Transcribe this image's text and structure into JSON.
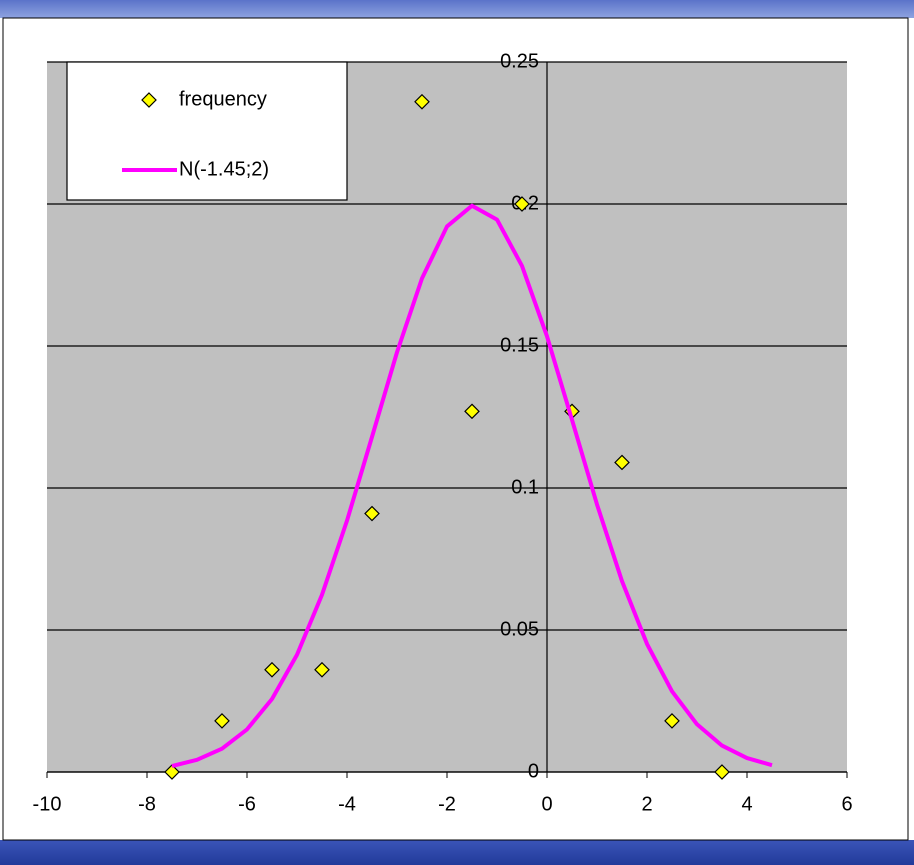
{
  "chart_data": {
    "type": "scatter",
    "series": [
      {
        "name": "frequency",
        "color": "#ffff00",
        "marker": "diamond",
        "x": [
          -7.5,
          -6.5,
          -5.5,
          -4.5,
          -3.5,
          -2.5,
          -1.5,
          -0.5,
          0.5,
          1.5,
          2.5,
          3.5
        ],
        "values": [
          0,
          0.018,
          0.036,
          0.036,
          0.091,
          0.236,
          0.127,
          0.2,
          0.127,
          0.109,
          0.018,
          0
        ]
      },
      {
        "name": "N(-1.45;2)",
        "color": "#ff00ff",
        "marker": "line",
        "x": [
          -7.5,
          -7,
          -6.5,
          -6,
          -5.5,
          -5,
          -4.5,
          -4,
          -3.5,
          -3,
          -2.5,
          -2,
          -1.5,
          -1,
          -0.5,
          0,
          0.5,
          1,
          1.5,
          2,
          2.5,
          3,
          3.5,
          4,
          4.5
        ],
        "values": [
          0.0021,
          0.0043,
          0.0082,
          0.015,
          0.0257,
          0.0413,
          0.0624,
          0.0885,
          0.118,
          0.1478,
          0.1738,
          0.1921,
          0.1994,
          0.1945,
          0.1782,
          0.1534,
          0.124,
          0.0942,
          0.0672,
          0.0451,
          0.0284,
          0.0168,
          0.0093,
          0.0049,
          0.0024
        ]
      }
    ],
    "xlim": [
      -10,
      6
    ],
    "xticks": [
      -10,
      -8,
      -6,
      -4,
      -2,
      0,
      2,
      4,
      6
    ],
    "ylim": [
      0,
      0.25
    ],
    "yticks": [
      0,
      0.05,
      0.1,
      0.15,
      0.2,
      0.25
    ],
    "grid": true,
    "legend": "upper-left"
  }
}
